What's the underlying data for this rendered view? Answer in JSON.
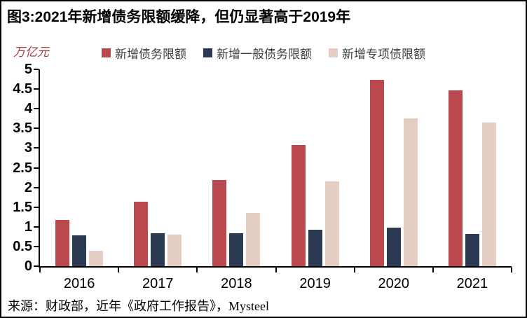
{
  "title": "图3:2021年新增债务限额缓降，但仍显著高于2019年",
  "source": "来源：财政部，近年《政府工作报告》，Mysteel",
  "colors": {
    "series_red": "#B9494E",
    "series_navy": "#293A52",
    "series_pink": "#E5CDC4",
    "axis": "#000000",
    "legend_text": "#3F3F3F",
    "unit_text": "#A43E43",
    "title_text": "#000000"
  },
  "chart_data": {
    "type": "bar",
    "title": "图3:2021年新增债务限额缓降，但仍显著高于2019年",
    "ylabel": "万亿元",
    "xlabel": "",
    "categories": [
      "2016",
      "2017",
      "2018",
      "2019",
      "2020",
      "2021"
    ],
    "series": [
      {
        "name": "新增债务限额",
        "color": "#B9494E",
        "values": [
          1.18,
          1.63,
          2.18,
          3.08,
          4.73,
          4.47
        ]
      },
      {
        "name": "新增一般债务限额",
        "color": "#293A52",
        "values": [
          0.78,
          0.83,
          0.83,
          0.93,
          0.98,
          0.82
        ]
      },
      {
        "name": "新增专项债限额",
        "color": "#E5CDC4",
        "values": [
          0.4,
          0.8,
          1.35,
          2.15,
          3.75,
          3.65
        ]
      }
    ],
    "ylim": [
      0,
      5
    ],
    "ytick_labels": [
      "5",
      "4.5",
      "4",
      "3.5",
      "3",
      "2.5",
      "2",
      "1.5",
      "1",
      "0.5",
      "0"
    ],
    "grid": false,
    "legend_position": "top"
  }
}
